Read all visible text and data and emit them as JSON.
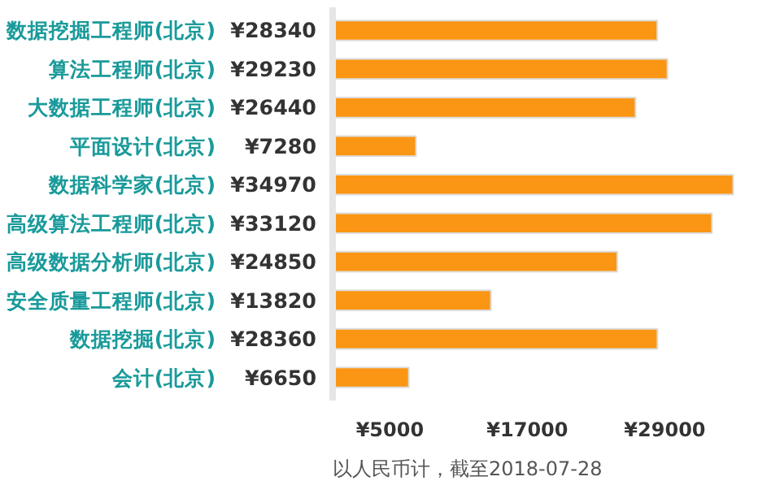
{
  "chart_data": {
    "type": "bar",
    "orientation": "horizontal",
    "categories": [
      "数据挖掘工程师(北京)",
      "算法工程师(北京)",
      "大数据工程师(北京)",
      "平面设计(北京)",
      "数据科学家(北京)",
      "高级算法工程师(北京)",
      "高级数据分析师(北京)",
      "安全质量工程师(北京)",
      "数据挖掘(北京)",
      "会计(北京)"
    ],
    "values": [
      28340,
      29230,
      26440,
      7280,
      34970,
      33120,
      24850,
      13820,
      28360,
      6650
    ],
    "value_labels": [
      "¥28340",
      "¥29230",
      "¥26440",
      "¥7280",
      "¥34970",
      "¥33120",
      "¥24850",
      "¥13820",
      "¥28360",
      "¥6650"
    ],
    "color": "#fb9614",
    "xlim": [
      0,
      35500
    ],
    "xticks": [
      {
        "value": 5000,
        "label": "¥5000"
      },
      {
        "value": 17000,
        "label": "¥17000"
      },
      {
        "value": 29000,
        "label": "¥29000"
      }
    ],
    "grid": false,
    "annotations": [
      "以人民币计，截至2018-07-28"
    ]
  }
}
